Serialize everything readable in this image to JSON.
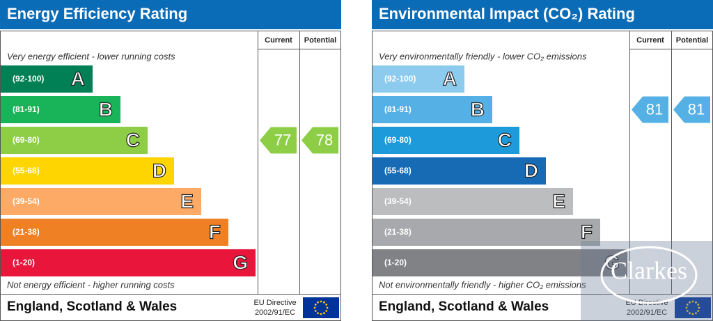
{
  "panels": [
    {
      "title": "Energy Efficiency Rating",
      "columns": [
        "Current",
        "Potential"
      ],
      "top_note": "Very energy efficient - lower running costs",
      "bottom_note": "Not energy efficient - higher running costs",
      "bands": [
        {
          "label": "(92-100)",
          "min": 92,
          "max": 100,
          "letter": "A",
          "color": "#008054"
        },
        {
          "label": "(81-91)",
          "min": 81,
          "max": 91,
          "letter": "B",
          "color": "#19b459"
        },
        {
          "label": "(69-80)",
          "min": 69,
          "max": 80,
          "letter": "C",
          "color": "#8dce46"
        },
        {
          "label": "(55-68)",
          "min": 55,
          "max": 68,
          "letter": "D",
          "color": "#ffd500"
        },
        {
          "label": "(39-54)",
          "min": 39,
          "max": 54,
          "letter": "E",
          "color": "#fcaa65"
        },
        {
          "label": "(21-38)",
          "min": 21,
          "max": 38,
          "letter": "F",
          "color": "#ef8023"
        },
        {
          "label": "(1-20)",
          "min": 1,
          "max": 20,
          "letter": "G",
          "color": "#e9153b"
        }
      ],
      "current": 77,
      "potential": 78,
      "region": "England, Scotland & Wales",
      "directive": [
        "EU Directive",
        "2002/91/EC"
      ]
    },
    {
      "title": "Environmental Impact (CO₂) Rating",
      "columns": [
        "Current",
        "Potential"
      ],
      "top_note": "Very environmentally friendly - lower CO₂ emissions",
      "bottom_note": "Not environmentally friendly - higher CO₂ emissions",
      "bands": [
        {
          "label": "(92-100)",
          "min": 92,
          "max": 100,
          "letter": "A",
          "color": "#8ccbee"
        },
        {
          "label": "(81-91)",
          "min": 81,
          "max": 91,
          "letter": "B",
          "color": "#55b1e5"
        },
        {
          "label": "(69-80)",
          "min": 69,
          "max": 80,
          "letter": "C",
          "color": "#1d9ad9"
        },
        {
          "label": "(55-68)",
          "min": 55,
          "max": 68,
          "letter": "D",
          "color": "#176bb5"
        },
        {
          "label": "(39-54)",
          "min": 39,
          "max": 54,
          "letter": "E",
          "color": "#bbbdbf"
        },
        {
          "label": "(21-38)",
          "min": 21,
          "max": 38,
          "letter": "F",
          "color": "#a7a9ac"
        },
        {
          "label": "(1-20)",
          "min": 1,
          "max": 20,
          "letter": "G",
          "color": "#808285"
        }
      ],
      "current": 81,
      "potential": 81,
      "region": "England, Scotland & Wales",
      "directive": [
        "EU Directive",
        "2002/91/EC"
      ]
    }
  ],
  "watermark": "Clarkes"
}
